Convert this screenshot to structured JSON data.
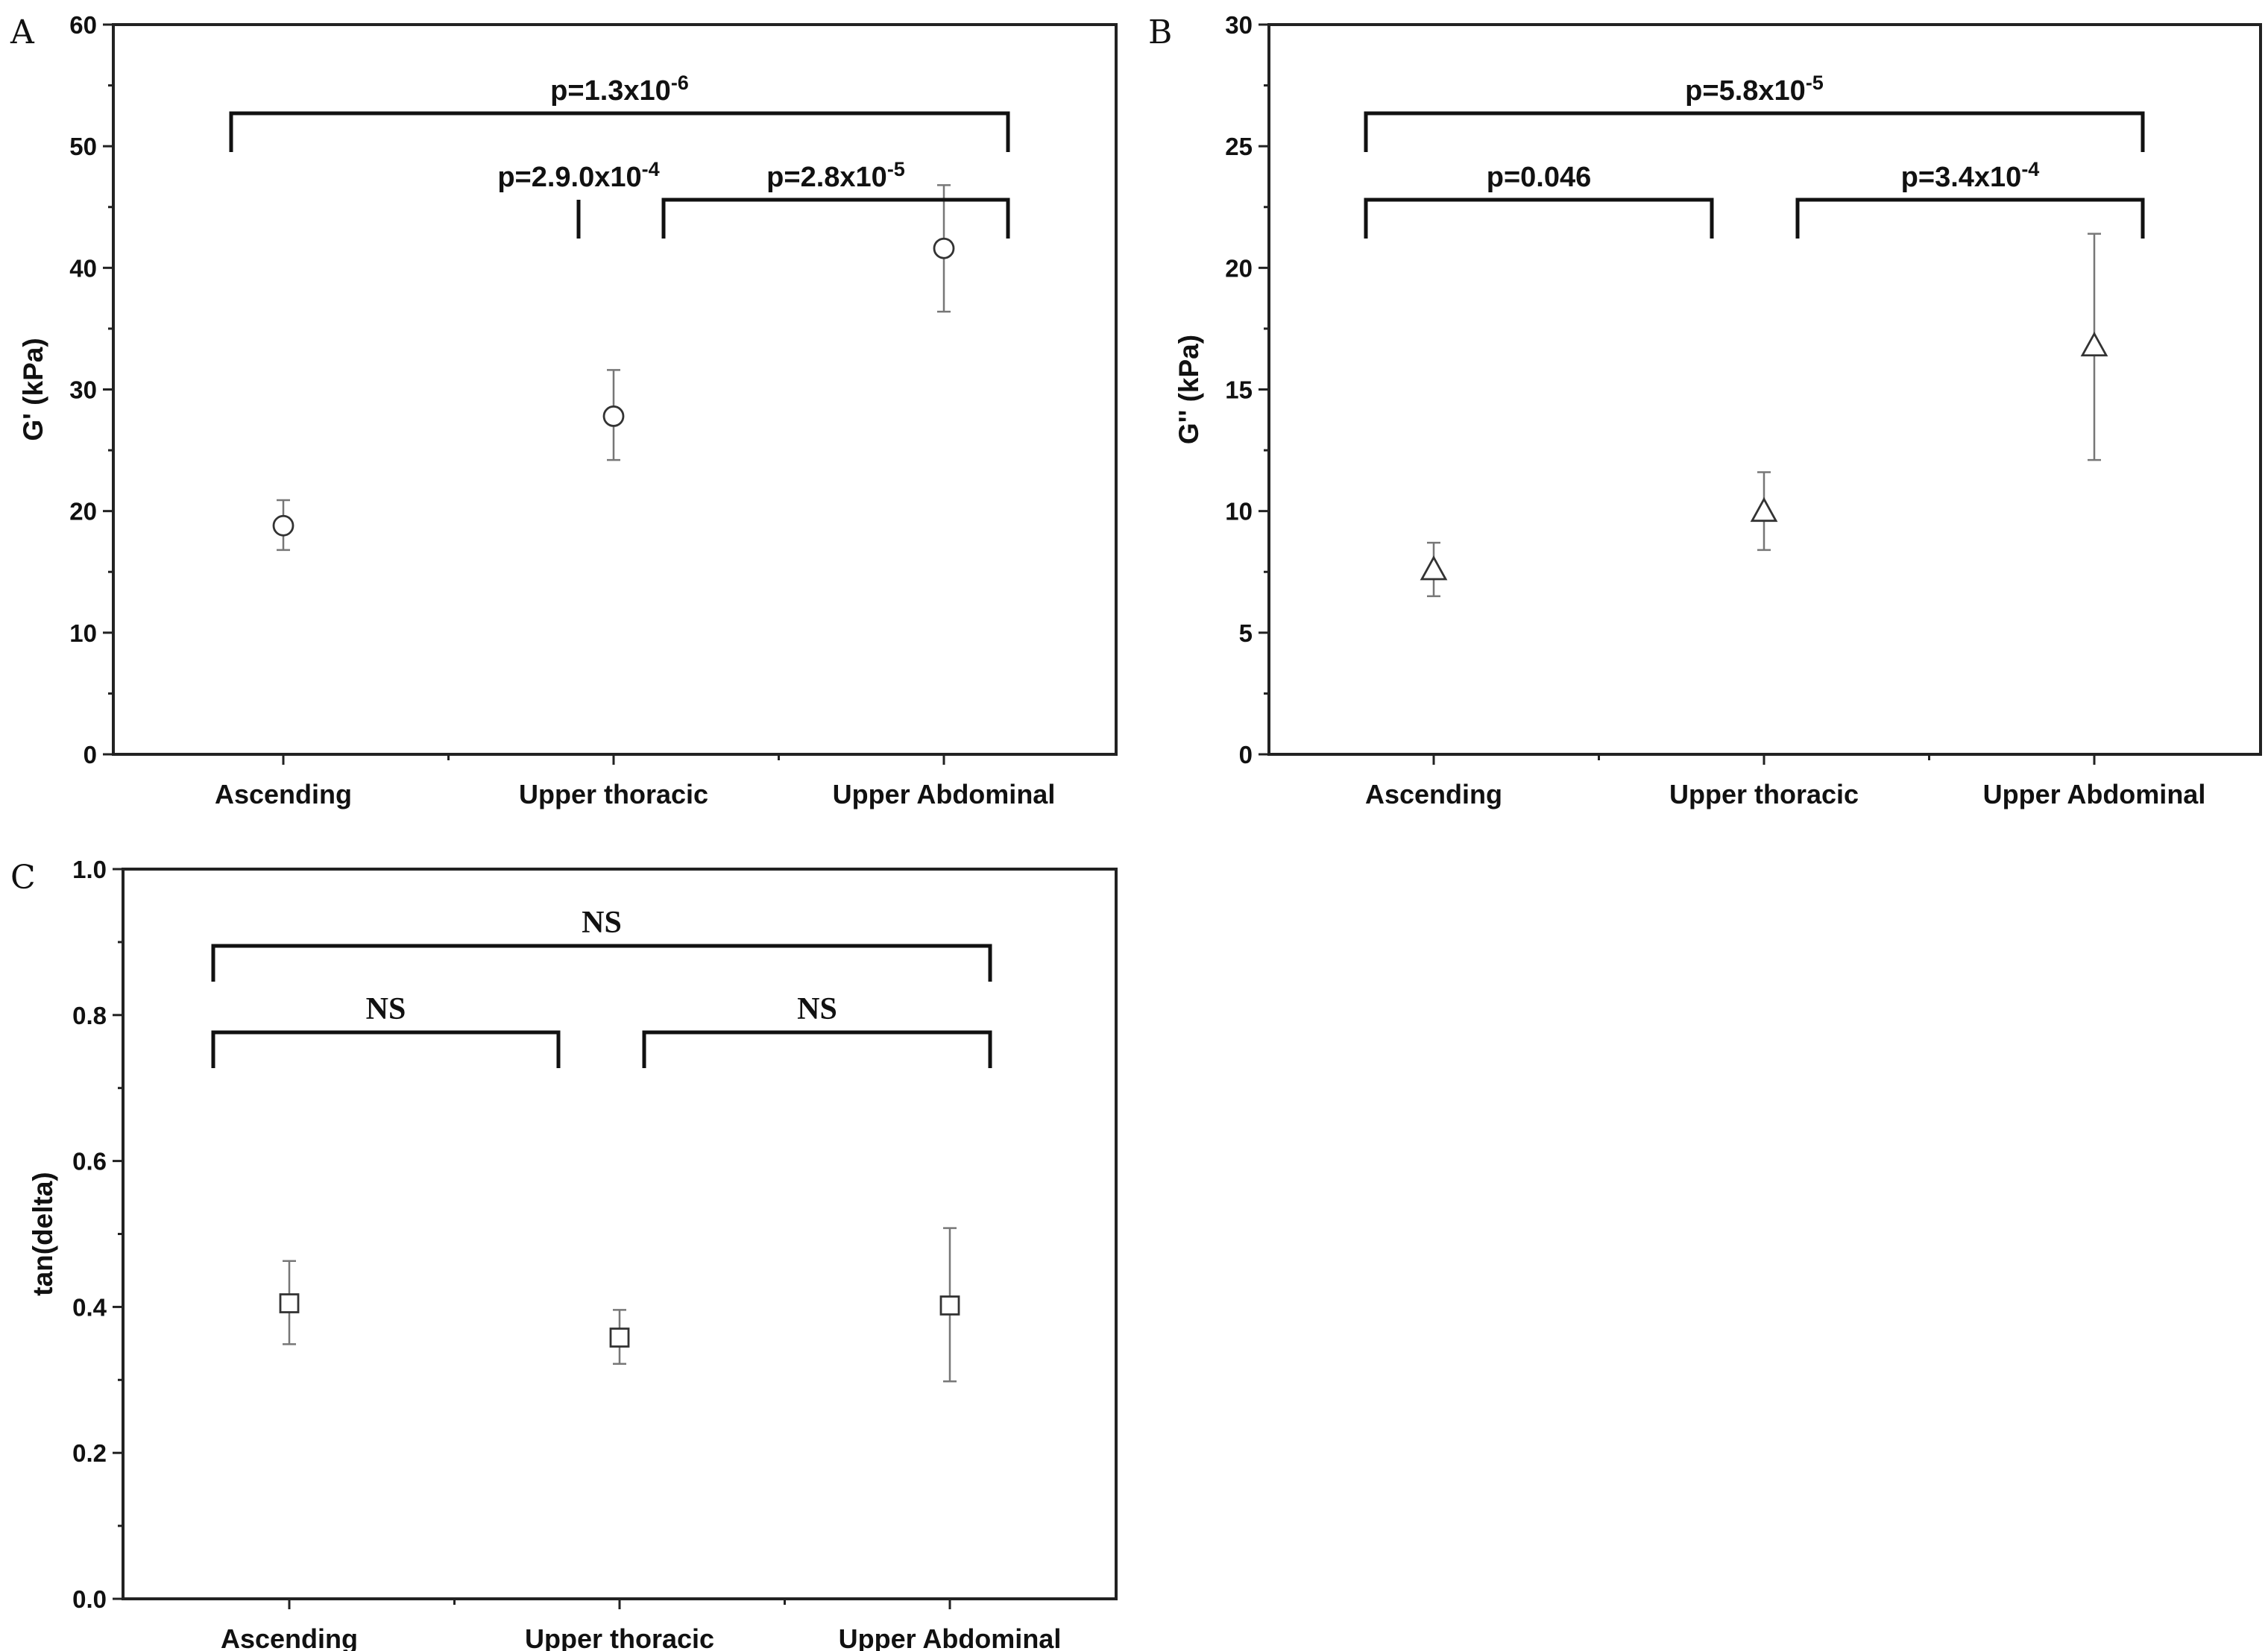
{
  "chart_data": [
    {
      "panel": "A",
      "type": "scatter",
      "categories": [
        "Ascending",
        "Upper thoracic",
        "Upper Abdominal"
      ],
      "ylabel": "G' (kPa)",
      "ylim": [
        0,
        60
      ],
      "yticks": [
        "0",
        "10",
        "20",
        "30",
        "40",
        "50",
        "60"
      ],
      "marker": "circle",
      "series": [
        {
          "values": [
            18.8,
            27.8,
            41.6
          ],
          "err_low": [
            16.8,
            24.2,
            36.4
          ],
          "err_high": [
            20.9,
            31.6,
            46.8
          ]
        }
      ],
      "comparisons": [
        {
          "from": 0,
          "to": 2,
          "label": "p=1.3x10",
          "exp": "-6",
          "level": "top"
        },
        {
          "from": 0,
          "to": 1,
          "label": "p=2.9.0x10",
          "exp": "-4",
          "level": "low"
        },
        {
          "from": 1,
          "to": 2,
          "label": "p=2.8x10",
          "exp": "-5",
          "level": "low"
        }
      ],
      "grid": false
    },
    {
      "panel": "B",
      "type": "scatter",
      "categories": [
        "Ascending",
        "Upper thoracic",
        "Upper Abdominal"
      ],
      "ylabel": "G'' (kPa)",
      "ylim": [
        0,
        30
      ],
      "yticks": [
        "0",
        "5",
        "10",
        "15",
        "20",
        "25",
        "30"
      ],
      "marker": "triangle",
      "series": [
        {
          "values": [
            7.6,
            10.0,
            16.8
          ],
          "err_low": [
            6.5,
            8.4,
            12.1
          ],
          "err_high": [
            8.7,
            11.6,
            21.4
          ]
        }
      ],
      "comparisons": [
        {
          "from": 0,
          "to": 2,
          "label": "p=5.8x10",
          "exp": "-5",
          "level": "top"
        },
        {
          "from": 0,
          "to": 1,
          "label": "p=0.046",
          "exp": "",
          "level": "low"
        },
        {
          "from": 1,
          "to": 2,
          "label": "p=3.4x10",
          "exp": "-4",
          "level": "low"
        }
      ],
      "grid": false
    },
    {
      "panel": "C",
      "type": "scatter",
      "categories": [
        "Ascending",
        "Upper thoracic",
        "Upper Abdominal"
      ],
      "ylabel": "tan(delta)",
      "ylim": [
        0,
        1
      ],
      "yticks": [
        "0.0",
        "0.2",
        "0.4",
        "0.6",
        "0.8",
        "1.0"
      ],
      "marker": "square",
      "series": [
        {
          "values": [
            0.405,
            0.358,
            0.402
          ],
          "err_low": [
            0.349,
            0.322,
            0.298
          ],
          "err_high": [
            0.463,
            0.396,
            0.508
          ]
        }
      ],
      "comparisons": [
        {
          "from": 0,
          "to": 2,
          "label": "NS",
          "exp": "",
          "level": "top"
        },
        {
          "from": 0,
          "to": 1,
          "label": "NS",
          "exp": "",
          "level": "low"
        },
        {
          "from": 1,
          "to": 2,
          "label": "NS",
          "exp": "",
          "level": "low"
        }
      ],
      "grid": false
    }
  ]
}
